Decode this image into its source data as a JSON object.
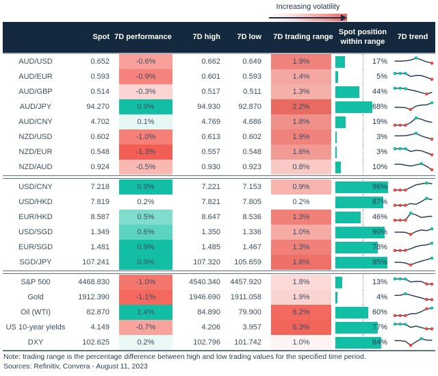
{
  "legend": {
    "label": "Increasing volatility"
  },
  "footer": {
    "note": "Note: trading range is the percentage difference between high and low trading values for the specified time period.",
    "sources": "Sources: Refinitiv, Convera - August 11, 2023"
  },
  "colors": {
    "header_bg": "#14293e",
    "teal": "#12bfa4",
    "red_dot": "#e8493f",
    "line": "#2b3f58",
    "text": "#3b4d63"
  },
  "chart_data": {
    "type": "table",
    "title": "7D FX and market volatility overview",
    "columns": [
      "",
      "Spot",
      "7D performance",
      "7D high",
      "7D low",
      "7D trading range",
      "Spot position within range",
      "7D trend"
    ],
    "sparkline_type": "line",
    "sections": [
      {
        "rows": [
          {
            "name": "AUD/USD",
            "spot": "0.652",
            "perf": "-0.6%",
            "perf_color": "#f9a09a",
            "high": "0.662",
            "low": "0.649",
            "range": "1.9%",
            "range_color": "#ef837b",
            "position_pct": 17,
            "position_label": "17%",
            "trend": {
              "y": [
                55,
                55,
                57,
                64,
                84,
                66,
                48,
                36
              ],
              "teal_dots": [
                4
              ],
              "red_dots": [
                7
              ]
            }
          },
          {
            "name": "AUD/EUR",
            "spot": "0.593",
            "perf": "-0.9%",
            "perf_color": "#f6847c",
            "high": "0.601",
            "low": "0.593",
            "range": "1.4%",
            "range_color": "#f5a8a2",
            "position_pct": 5,
            "position_label": "5%",
            "trend": {
              "y": [
                80,
                80,
                80,
                52,
                62,
                60,
                45,
                26
              ],
              "teal_dots": [
                0,
                1,
                2
              ],
              "red_dots": [
                7
              ]
            }
          },
          {
            "name": "AUD/GBP",
            "spot": "0.514",
            "perf": "-0.3%",
            "perf_color": "#fcd4d1",
            "high": "0.517",
            "low": "0.511",
            "range": "1.3%",
            "range_color": "#f6b0aa",
            "position_pct": 44,
            "position_label": "44%",
            "trend": {
              "y": [
                82,
                82,
                78,
                66,
                56,
                42,
                30,
                44
              ],
              "teal_dots": [
                0,
                1,
                2
              ],
              "red_dots": [
                6
              ]
            }
          },
          {
            "name": "AUD/JPY",
            "spot": "94.270",
            "perf": "0.9%",
            "perf_color": "#12bfa4",
            "high": "94.930",
            "low": "92.870",
            "range": "2.2%",
            "range_color": "#e96a60",
            "position_pct": 68,
            "position_label": "68%",
            "trend": {
              "y": [
                46,
                46,
                42,
                26,
                56,
                66,
                68,
                86
              ],
              "teal_dots": [
                7
              ],
              "red_dots": [
                3
              ]
            }
          },
          {
            "name": "AUD/CNY",
            "spot": "4.702",
            "perf": "0.1%",
            "perf_color": "#e5f8f3",
            "high": "4.769",
            "low": "4.686",
            "range": "1.8%",
            "range_color": "#f0908a",
            "position_pct": 19,
            "position_label": "19%",
            "trend": {
              "y": [
                20,
                20,
                20,
                44,
                86,
                74,
                56,
                46
              ],
              "teal_dots": [
                4
              ],
              "red_dots": [
                0,
                1,
                2
              ]
            }
          },
          {
            "name": "NZD/USD",
            "spot": "0.602",
            "perf": "-1.0%",
            "perf_color": "#f67f77",
            "high": "0.613",
            "low": "0.602",
            "range": "1.9%",
            "range_color": "#ef837b",
            "position_pct": 3,
            "position_label": "3%",
            "trend": {
              "y": [
                60,
                60,
                62,
                70,
                84,
                60,
                44,
                30
              ],
              "teal_dots": [
                4
              ],
              "red_dots": [
                7
              ]
            }
          },
          {
            "name": "NZD/EUR",
            "spot": "0.548",
            "perf": "-1.3%",
            "perf_color": "#f25e54",
            "high": "0.557",
            "low": "0.548",
            "range": "1.6%",
            "range_color": "#f29b94",
            "position_pct": 3,
            "position_label": "3%",
            "trend": {
              "y": [
                80,
                80,
                80,
                55,
                66,
                62,
                44,
                25
              ],
              "teal_dots": [
                0,
                1,
                2
              ],
              "red_dots": [
                7
              ]
            }
          },
          {
            "name": "NZD/AUD",
            "spot": "0.924",
            "perf": "-0.5%",
            "perf_color": "#fab8b2",
            "high": "0.930",
            "low": "0.923",
            "range": "0.8%",
            "range_color": "#f9c9c5",
            "position_pct": 10,
            "position_label": "10%",
            "trend": {
              "y": [
                76,
                76,
                68,
                60,
                70,
                82,
                58,
                26
              ],
              "teal_dots": [
                5
              ],
              "red_dots": [
                7
              ]
            }
          }
        ]
      },
      {
        "rows": [
          {
            "name": "USD/CNY",
            "spot": "7.218",
            "perf": "0.9%",
            "perf_color": "#12bfa4",
            "high": "7.221",
            "low": "7.153",
            "range": "0.9%",
            "range_color": "#f8b5b0",
            "position_pct": 96,
            "position_label": "96%",
            "trend": {
              "y": [
                22,
                22,
                22,
                46,
                70,
                78,
                86,
                80
              ],
              "teal_dots": [
                6
              ],
              "red_dots": [
                0,
                1,
                2
              ]
            }
          },
          {
            "name": "USD/HKD",
            "spot": "7.819",
            "perf": "0.2%",
            "perf_color": "#ffffff",
            "high": "7.821",
            "low": "7.805",
            "range": "0.2%",
            "range_color": "#ffffff",
            "position_pct": 87,
            "position_label": "87%",
            "trend": {
              "y": [
                20,
                20,
                20,
                36,
                30,
                54,
                84,
                72
              ],
              "teal_dots": [
                6
              ],
              "red_dots": [
                0,
                1,
                2
              ]
            }
          },
          {
            "name": "EUR/HKD",
            "spot": "8.587",
            "perf": "0.5%",
            "perf_color": "#7eddcb",
            "high": "8.647",
            "low": "8.536",
            "range": "1.3%",
            "range_color": "#f18078",
            "position_pct": 46,
            "position_label": "46%",
            "trend": {
              "y": [
                22,
                22,
                22,
                86,
                70,
                46,
                54,
                58
              ],
              "teal_dots": [
                3
              ],
              "red_dots": [
                0,
                1,
                2
              ]
            }
          },
          {
            "name": "USD/SGD",
            "spot": "1.349",
            "perf": "0.6%",
            "perf_color": "#5cd5c0",
            "high": "1.350",
            "low": "1.336",
            "range": "1.0%",
            "range_color": "#f6aba5",
            "position_pct": 90,
            "position_label": "90%",
            "trend": {
              "y": [
                50,
                50,
                48,
                30,
                56,
                70,
                64,
                80
              ],
              "teal_dots": [
                7
              ],
              "red_dots": [
                3
              ]
            }
          },
          {
            "name": "EUR/SGD",
            "spot": "1.481",
            "perf": "0.9%",
            "perf_color": "#12bfa4",
            "high": "1.485",
            "low": "1.467",
            "range": "1.3%",
            "range_color": "#f18078",
            "position_pct": 78,
            "position_label": "78%",
            "trend": {
              "y": [
                20,
                20,
                22,
                36,
                56,
                66,
                72,
                86
              ],
              "teal_dots": [
                7
              ],
              "red_dots": [
                0,
                1,
                2
              ]
            }
          },
          {
            "name": "SGD/JPY",
            "spot": "107.241",
            "perf": "0.9%",
            "perf_color": "#12bfa4",
            "high": "107.320",
            "low": "105.659",
            "range": "1.6%",
            "range_color": "#ee7168",
            "position_pct": 95,
            "position_label": "95%",
            "trend": {
              "y": [
                50,
                50,
                44,
                26,
                46,
                60,
                74,
                88
              ],
              "teal_dots": [
                7
              ],
              "red_dots": [
                3
              ]
            }
          }
        ]
      },
      {
        "rows": [
          {
            "name": "S&P 500",
            "spot": "4468.830",
            "perf": "-1.0%",
            "perf_color": "#f5766d",
            "high": "4540.340",
            "low": "4457.920",
            "range": "1.8%",
            "range_color": "#fbdad7",
            "position_pct": 13,
            "position_label": "13%",
            "trend": {
              "y": [
                80,
                80,
                78,
                52,
                58,
                56,
                34,
                32
              ],
              "teal_dots": [
                0,
                1,
                2
              ],
              "red_dots": [
                6,
                7
              ]
            }
          },
          {
            "name": "Gold",
            "spot": "1912.390",
            "perf": "-1.1%",
            "perf_color": "#f4695f",
            "high": "1946.690",
            "low": "1911.058",
            "range": "1.9%",
            "range_color": "#fad4d1",
            "position_pct": 4,
            "position_label": "4%",
            "trend": {
              "y": [
                66,
                68,
                82,
                70,
                56,
                44,
                30,
                28
              ],
              "teal_dots": [
                2
              ],
              "red_dots": [
                6,
                7
              ]
            }
          },
          {
            "name": "Oil (WTI)",
            "spot": "82.870",
            "perf": "1.4%",
            "perf_color": "#12bfa4",
            "high": "84.890",
            "low": "79.900",
            "range": "6.2%",
            "range_color": "#f3695f",
            "position_pct": 60,
            "position_label": "60%",
            "trend": {
              "y": [
                20,
                20,
                20,
                36,
                38,
                56,
                82,
                88
              ],
              "teal_dots": [
                7
              ],
              "red_dots": [
                0,
                1,
                2,
                6
              ]
            }
          },
          {
            "name": "US 10-year yields",
            "spot": "4.149",
            "perf": "-0.7%",
            "perf_color": "#f9a39d",
            "high": "4.206",
            "low": "3.957",
            "range": "6.3%",
            "range_color": "#f2655b",
            "position_pct": 77,
            "position_label": "77%",
            "trend": {
              "y": [
                80,
                80,
                78,
                50,
                62,
                48,
                36,
                36
              ],
              "teal_dots": [
                0,
                1,
                2
              ],
              "red_dots": [
                6,
                7
              ]
            }
          },
          {
            "name": "DXY",
            "spot": "102.625",
            "perf": "0.2%",
            "perf_color": "#e8f8f4",
            "high": "102.796",
            "low": "101.742",
            "range": "1.0%",
            "range_color": "#fef4f3",
            "position_pct": 84,
            "position_label": "84%",
            "trend": {
              "y": [
                66,
                66,
                60,
                24,
                56,
                84,
                72,
                70
              ],
              "teal_dots": [
                5
              ],
              "red_dots": [
                3
              ]
            }
          }
        ]
      }
    ]
  }
}
